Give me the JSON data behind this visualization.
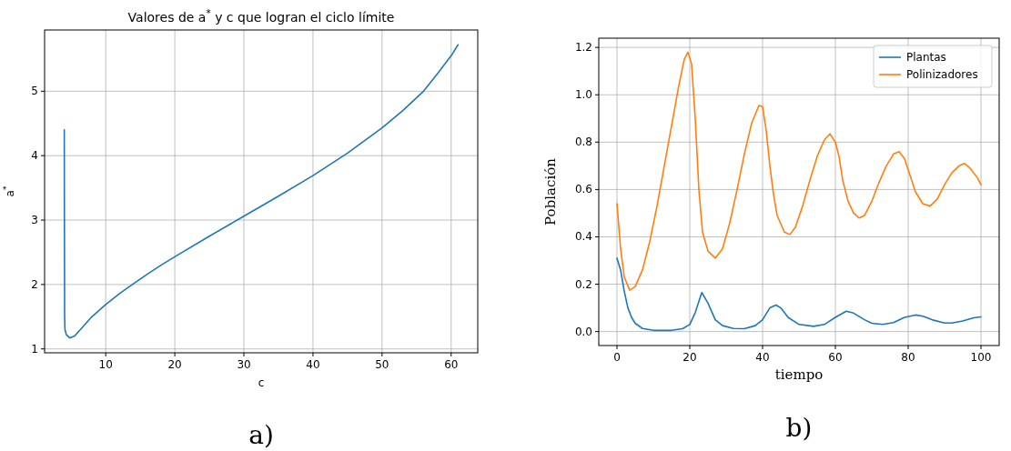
{
  "chart_data": [
    {
      "type": "line",
      "title": "Valores de a$^{*}$ y c que logran el ciclo límite",
      "xlabel": "c",
      "ylabel": "a$^{*}$",
      "annotations": [
        "a)"
      ],
      "x": [
        4,
        4.02,
        4.05,
        4.1,
        4.3,
        4.8,
        5.5,
        7,
        8,
        10,
        12,
        14,
        16,
        18,
        20,
        25,
        30,
        35,
        40,
        45,
        50,
        53,
        56,
        58,
        60,
        61
      ],
      "series": [
        {
          "color": "#1f77b4",
          "values": [
            4.4,
            3.0,
            1.5,
            1.3,
            1.22,
            1.17,
            1.2,
            1.38,
            1.5,
            1.69,
            1.86,
            2.01,
            2.16,
            2.3,
            2.43,
            2.75,
            3.06,
            3.37,
            3.69,
            4.04,
            4.43,
            4.7,
            5.0,
            5.27,
            5.55,
            5.72
          ]
        }
      ],
      "xlim": [
        1.15,
        63.85
      ],
      "ylim": [
        0.94,
        5.95
      ],
      "xticks": [
        10,
        20,
        30,
        40,
        50,
        60
      ],
      "yticks": [
        1,
        2,
        3,
        4,
        5
      ],
      "grid": true
    },
    {
      "type": "line",
      "xlabel": "tiempo",
      "ylabel": "Población",
      "annotations": [
        "b)"
      ],
      "series": [
        {
          "name": "Plantas",
          "color": "#1f77b4",
          "x": [
            0,
            1,
            2,
            3,
            4,
            5,
            7,
            10,
            15,
            18,
            20,
            21.5,
            23.3,
            25,
            27,
            29,
            32,
            35,
            38,
            40,
            42,
            43.7,
            45,
            47,
            50,
            54,
            57,
            60,
            63,
            65,
            68,
            70,
            73,
            76,
            79,
            82,
            84,
            87,
            90,
            92,
            95,
            98,
            100
          ],
          "values": [
            0.31,
            0.26,
            0.17,
            0.1,
            0.06,
            0.035,
            0.013,
            0.005,
            0.005,
            0.012,
            0.03,
            0.08,
            0.165,
            0.12,
            0.05,
            0.025,
            0.013,
            0.012,
            0.025,
            0.05,
            0.1,
            0.112,
            0.1,
            0.06,
            0.03,
            0.022,
            0.03,
            0.06,
            0.086,
            0.078,
            0.05,
            0.035,
            0.03,
            0.038,
            0.06,
            0.07,
            0.065,
            0.048,
            0.036,
            0.036,
            0.045,
            0.058,
            0.062
          ]
        },
        {
          "name": "Polinizadores",
          "color": "#ff7f0e",
          "x": [
            0,
            1,
            2,
            3.5,
            5,
            7,
            9,
            11,
            13,
            15,
            17,
            18.5,
            19.5,
            20.5,
            21.5,
            22.5,
            23.5,
            25,
            27,
            29,
            31,
            33,
            35,
            37,
            39,
            40,
            41,
            42,
            43,
            44,
            46,
            47.5,
            49,
            51,
            53,
            55,
            57,
            58.5,
            60,
            61,
            62,
            63.5,
            65,
            66.5,
            68,
            70,
            72,
            74,
            76,
            77.5,
            79,
            80.5,
            82,
            84,
            86,
            88,
            90,
            92,
            94,
            95.5,
            97,
            99,
            100
          ],
          "values": [
            0.54,
            0.35,
            0.23,
            0.175,
            0.19,
            0.26,
            0.38,
            0.53,
            0.7,
            0.87,
            1.04,
            1.15,
            1.18,
            1.13,
            0.9,
            0.6,
            0.42,
            0.34,
            0.31,
            0.35,
            0.46,
            0.6,
            0.75,
            0.88,
            0.955,
            0.95,
            0.85,
            0.7,
            0.58,
            0.49,
            0.42,
            0.41,
            0.44,
            0.53,
            0.64,
            0.74,
            0.81,
            0.835,
            0.8,
            0.74,
            0.64,
            0.55,
            0.5,
            0.48,
            0.49,
            0.55,
            0.63,
            0.7,
            0.75,
            0.76,
            0.73,
            0.66,
            0.59,
            0.54,
            0.53,
            0.56,
            0.62,
            0.67,
            0.7,
            0.71,
            0.69,
            0.65,
            0.62
          ]
        }
      ],
      "xlim": [
        -5,
        105
      ],
      "ylim": [
        -0.059,
        1.239
      ],
      "xticks": [
        0,
        20,
        40,
        60,
        80,
        100
      ],
      "yticks": [
        {
          "value": 0,
          "label": "0.0"
        },
        {
          "value": 0.2,
          "label": "0.2"
        },
        {
          "value": 0.4,
          "label": "0.4"
        },
        {
          "value": 0.6,
          "label": "0.6"
        },
        {
          "value": 0.8,
          "label": "0.8"
        },
        {
          "value": 1,
          "label": "1.0"
        },
        {
          "value": 1.2,
          "label": "1.2"
        }
      ],
      "grid": true,
      "legend": "top right"
    }
  ]
}
